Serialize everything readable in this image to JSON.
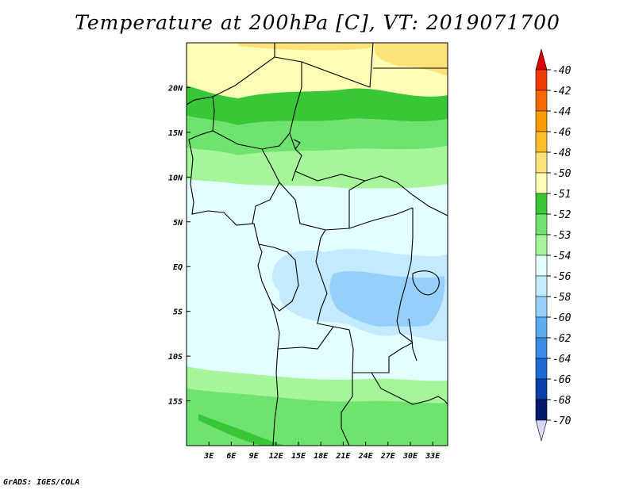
{
  "title": "Temperature at 200hPa [C], VT: 2019071700",
  "credit": "GrADS: IGES/COLA",
  "map": {
    "lat_labels": [
      "20N",
      "15N",
      "10N",
      "5N",
      "EQ",
      "5S",
      "10S",
      "15S"
    ],
    "lat_values": [
      20,
      15,
      10,
      5,
      0,
      -5,
      -10,
      -15
    ],
    "lon_labels": [
      "3E",
      "6E",
      "9E",
      "12E",
      "15E",
      "18E",
      "21E",
      "24E",
      "27E",
      "30E",
      "33E"
    ],
    "lon_values": [
      3,
      6,
      9,
      12,
      15,
      18,
      21,
      24,
      27,
      30,
      33
    ],
    "lon_range": [
      0,
      35
    ],
    "lat_range": [
      -20,
      25
    ]
  },
  "legend": {
    "labels": [
      "-40",
      "-42",
      "-44",
      "-46",
      "-48",
      "-50",
      "-51",
      "-52",
      "-53",
      "-54",
      "-56",
      "-58",
      "-60",
      "-62",
      "-64",
      "-66",
      "-68",
      "-70"
    ],
    "colors": [
      "#e00000",
      "#f03c00",
      "#f56a00",
      "#fa9c00",
      "#fbbf2c",
      "#fde27a",
      "#fffcb5",
      "#37c737",
      "#6ee36e",
      "#a6f59b",
      "#e3ffff",
      "#c2ebff",
      "#96d0fa",
      "#5eabef",
      "#3a8de6",
      "#1e69d1",
      "#0b3faa",
      "#061a6c",
      "#d8d8f6"
    ]
  },
  "fields": {
    "pale_yellow": "#fffcb5",
    "light_yellow": "#fde27a",
    "dark_green": "#37c737",
    "mid_green": "#6ee36e",
    "light_green": "#a6f59b",
    "pale_cyan": "#e3ffff",
    "light_blue": "#c2ebff",
    "blue": "#96d0fa"
  }
}
